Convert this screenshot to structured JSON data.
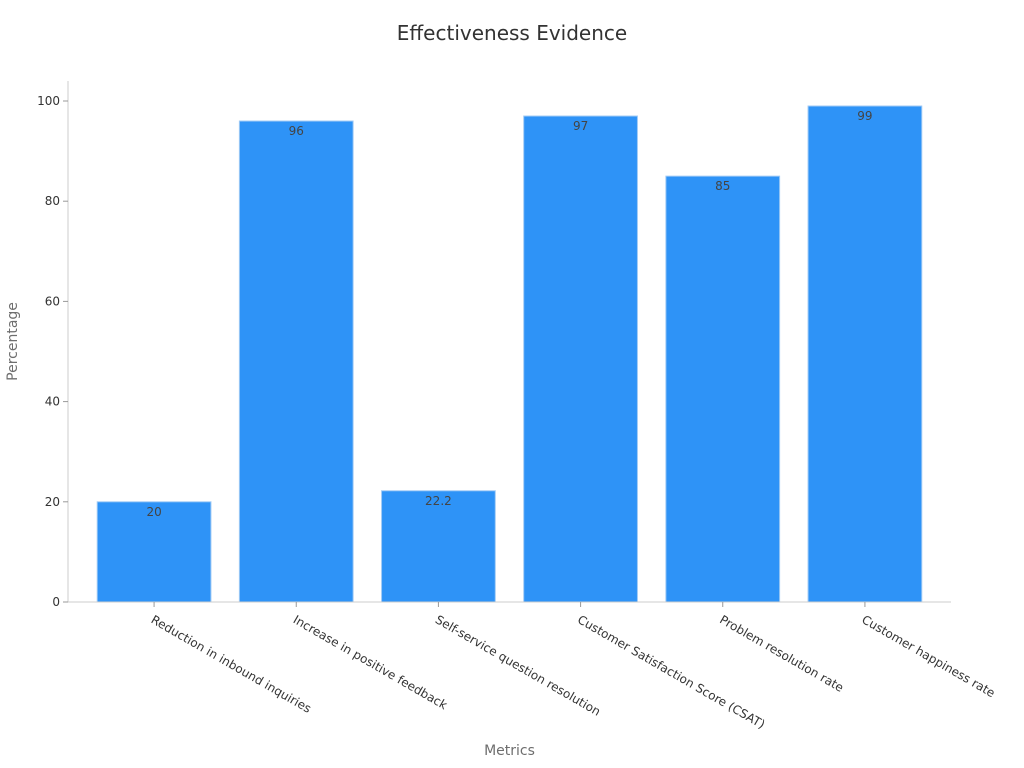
{
  "chart_data": {
    "type": "bar",
    "title": "Effectiveness Evidence",
    "xlabel": "Metrics",
    "ylabel": "Percentage",
    "categories": [
      "Reduction in inbound inquiries",
      "Increase in positive feedback",
      "Self-service question resolution",
      "Customer Satisfaction Score (CSAT)",
      "Problem resolution rate",
      "Customer happiness rate"
    ],
    "values": [
      20,
      96,
      22.2,
      97,
      85,
      99
    ],
    "data_labels": [
      "20",
      "96",
      "22.2",
      "97",
      "85",
      "99"
    ],
    "yticks": [
      0,
      20,
      40,
      60,
      80,
      100
    ],
    "ytick_labels": [
      "0",
      "20",
      "40",
      "60",
      "80",
      "100"
    ],
    "ylim": [
      0,
      104
    ],
    "grid": false,
    "legend": "none",
    "bar_color": "#2e93f7",
    "bar_edge_color": "#9fcaf5"
  }
}
